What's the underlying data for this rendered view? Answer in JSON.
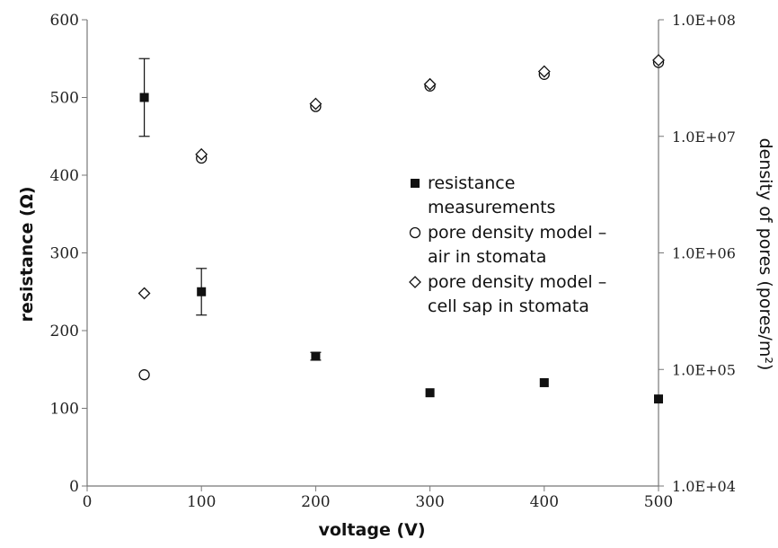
{
  "chart_data": {
    "type": "scatter",
    "xlabel": "voltage (V)",
    "ylabel": "resistance (Ω)",
    "y2label": "density of pores (pores/m²)",
    "xlim": [
      0,
      500
    ],
    "ylim": [
      0,
      600
    ],
    "y2lim": [
      10000,
      100000000
    ],
    "y2scale": "log",
    "x_ticks": [
      "0",
      "100",
      "200",
      "300",
      "400",
      "500"
    ],
    "y_ticks": [
      "0",
      "100",
      "200",
      "300",
      "400",
      "500",
      "600"
    ],
    "y2_ticks": [
      "1.0E+04",
      "1.0E+05",
      "1.0E+06",
      "1.0E+07",
      "1.0E+08"
    ],
    "grid": false,
    "legend_position": "right",
    "series": [
      {
        "name": "resistance measurements",
        "legend_lines": [
          "resistance",
          "measurements"
        ],
        "axis": "left",
        "marker": "square",
        "points": [
          {
            "x": 50,
            "y": 500,
            "err": 50
          },
          {
            "x": 100,
            "y": 250,
            "err": 30
          },
          {
            "x": 200,
            "y": 167,
            "err": 5
          },
          {
            "x": 300,
            "y": 120
          },
          {
            "x": 400,
            "y": 133
          },
          {
            "x": 500,
            "y": 112
          }
        ]
      },
      {
        "name": "pore density model - air in stomata",
        "legend_lines": [
          "pore density model –",
          "air in stomata"
        ],
        "axis": "right",
        "marker": "circle",
        "points": [
          {
            "x": 50,
            "y": 90000
          },
          {
            "x": 100,
            "y": 6500000
          },
          {
            "x": 200,
            "y": 18000000
          },
          {
            "x": 300,
            "y": 27000000
          },
          {
            "x": 400,
            "y": 34000000
          },
          {
            "x": 500,
            "y": 43000000
          }
        ]
      },
      {
        "name": "pore density model - cell sap in stomata",
        "legend_lines": [
          "pore density model –",
          "cell sap in stomata"
        ],
        "axis": "right",
        "marker": "diamond",
        "points": [
          {
            "x": 50,
            "y": 450000
          },
          {
            "x": 100,
            "y": 7000000
          },
          {
            "x": 200,
            "y": 19000000
          },
          {
            "x": 300,
            "y": 28000000
          },
          {
            "x": 400,
            "y": 36000000
          },
          {
            "x": 500,
            "y": 45000000
          }
        ]
      }
    ]
  }
}
